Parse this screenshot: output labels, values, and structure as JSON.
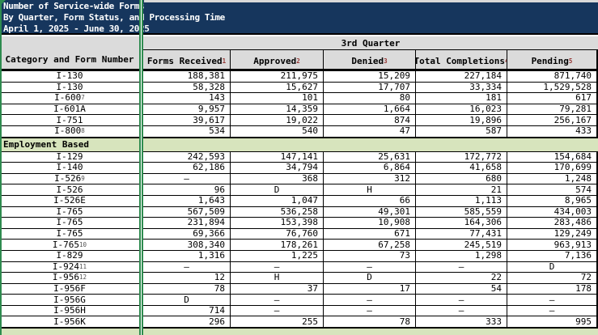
{
  "title": {
    "line1": "Number of Service-wide Forms",
    "line2": "By Quarter, Form Status, and Processing Time",
    "line3": "April 1, 2025 - June 30, 2025"
  },
  "table": {
    "corner_header": "Category and Form Number",
    "quarter_header": "3rd Quarter",
    "columns": [
      {
        "label": "Forms Received",
        "sup": "1"
      },
      {
        "label": "Approved",
        "sup": "2"
      },
      {
        "label": "Denied",
        "sup": "3"
      },
      {
        "label": "Total Completions",
        "sup": "4"
      },
      {
        "label": "Pending",
        "sup": "5"
      }
    ],
    "rows": [
      {
        "type": "data",
        "label": "I-130",
        "sup": "",
        "values": [
          "188,381",
          "211,975",
          "15,209",
          "227,184",
          "871,740"
        ]
      },
      {
        "type": "data",
        "label": "I-130",
        "sup": "",
        "values": [
          "58,328",
          "15,627",
          "17,707",
          "33,334",
          "1,529,528"
        ]
      },
      {
        "type": "data",
        "label": "I-600",
        "sup": "7",
        "values": [
          "143",
          "101",
          "80",
          "181",
          "617"
        ]
      },
      {
        "type": "data",
        "label": "I-601A",
        "sup": "",
        "values": [
          "9,957",
          "14,359",
          "1,664",
          "16,023",
          "79,281"
        ]
      },
      {
        "type": "data",
        "label": "I-751",
        "sup": "",
        "values": [
          "39,617",
          "19,022",
          "874",
          "19,896",
          "256,167"
        ]
      },
      {
        "type": "data",
        "label": "I-800",
        "sup": "8",
        "values": [
          "534",
          "540",
          "47",
          "587",
          "433"
        ]
      },
      {
        "type": "section",
        "label": "Employment Based"
      },
      {
        "type": "data",
        "label": "I-129",
        "sup": "",
        "values": [
          "242,593",
          "147,141",
          "25,631",
          "172,772",
          "154,684"
        ]
      },
      {
        "type": "data",
        "label": "I-140",
        "sup": "",
        "values": [
          "62,186",
          "34,794",
          "6,864",
          "41,658",
          "170,699"
        ]
      },
      {
        "type": "data",
        "label": "I-526",
        "sup": "9",
        "values": [
          "–",
          "368",
          "312",
          "680",
          "1,248"
        ]
      },
      {
        "type": "data",
        "label": "I-526",
        "sup": "",
        "values": [
          "96",
          "D",
          "H",
          "21",
          "574"
        ]
      },
      {
        "type": "data",
        "label": "I-526E",
        "sup": "",
        "values": [
          "1,643",
          "1,047",
          "66",
          "1,113",
          "8,965"
        ]
      },
      {
        "type": "data",
        "label": "I-765",
        "sup": "",
        "values": [
          "567,509",
          "536,258",
          "49,301",
          "585,559",
          "434,003"
        ]
      },
      {
        "type": "data",
        "label": "I-765",
        "sup": "",
        "values": [
          "231,894",
          "153,398",
          "10,908",
          "164,306",
          "283,486"
        ]
      },
      {
        "type": "data",
        "label": "I-765",
        "sup": "",
        "values": [
          "69,366",
          "76,760",
          "671",
          "77,431",
          "129,249"
        ]
      },
      {
        "type": "data",
        "label": "I-765",
        "sup": "10",
        "values": [
          "308,340",
          "178,261",
          "67,258",
          "245,519",
          "963,913"
        ]
      },
      {
        "type": "data",
        "label": "I-829",
        "sup": "",
        "values": [
          "1,316",
          "1,225",
          "73",
          "1,298",
          "7,136"
        ]
      },
      {
        "type": "data",
        "label": "I-924",
        "sup": "11",
        "values": [
          "–",
          "–",
          "–",
          "–",
          "D"
        ]
      },
      {
        "type": "data",
        "label": "I-956",
        "sup": "12",
        "values": [
          "12",
          "H",
          "D",
          "22",
          "72"
        ]
      },
      {
        "type": "data",
        "label": "I-956F",
        "sup": "",
        "values": [
          "78",
          "37",
          "17",
          "54",
          "178"
        ]
      },
      {
        "type": "data",
        "label": "I-956G",
        "sup": "",
        "values": [
          "D",
          "–",
          "–",
          "–",
          "–"
        ]
      },
      {
        "type": "data",
        "label": "I-956H",
        "sup": "",
        "values": [
          "714",
          "–",
          "–",
          "–",
          "–"
        ]
      },
      {
        "type": "data",
        "label": "I-956K",
        "sup": "",
        "values": [
          "296",
          "255",
          "78",
          "333",
          "995"
        ]
      },
      {
        "type": "section",
        "label": "",
        "tail": true
      }
    ]
  },
  "colors": {
    "title_background": "#16365D",
    "header_background": "#DBDBDB",
    "section_background": "#D7E4BD",
    "pane_divider_green": "#2E8B4F",
    "header_superscript_red": "#963634"
  }
}
